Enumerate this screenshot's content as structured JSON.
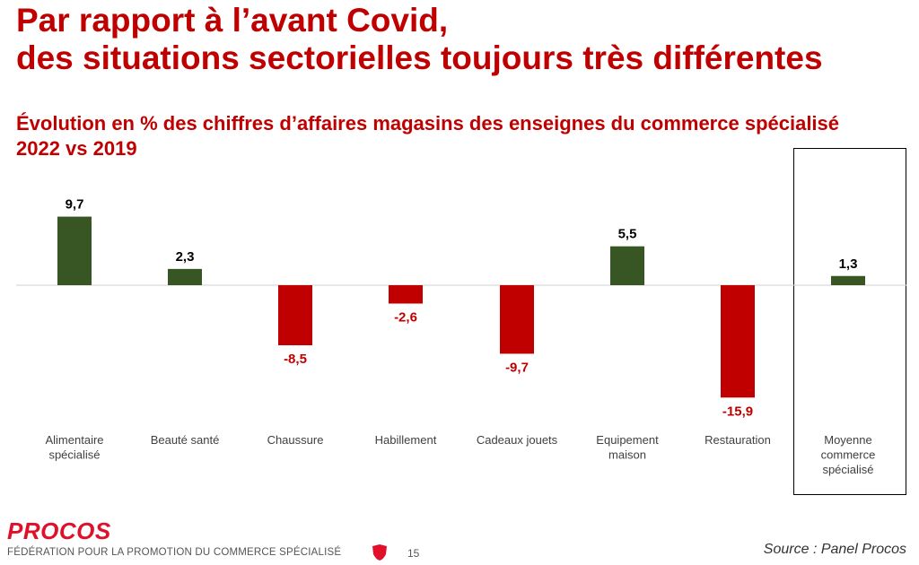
{
  "header": {
    "title_line1": "Par rapport à l’avant Covid,",
    "title_line2": "des situations sectorielles toujours très différentes"
  },
  "chart_data": {
    "type": "bar",
    "title": "Évolution en % des chiffres d’affaires magasins des enseignes du commerce spécialisé 2022 vs 2019",
    "categories": [
      [
        "Alimentaire",
        "spécialisé"
      ],
      [
        "Beauté santé"
      ],
      [
        "Chaussure"
      ],
      [
        "Habillement"
      ],
      [
        "Cadeaux jouets"
      ],
      [
        "Equipement",
        "maison"
      ],
      [
        "Restauration"
      ],
      [
        "Moyenne",
        "commerce",
        "spécialisé"
      ]
    ],
    "values": [
      9.7,
      2.3,
      -8.5,
      -2.6,
      -9.7,
      5.5,
      -15.9,
      1.3
    ],
    "value_labels": [
      "9,7",
      "2,3",
      "-8,5",
      "-2,6",
      "-9,7",
      "5,5",
      "-15,9",
      "1,3"
    ],
    "highlighted_category": "Moyenne commerce spécialisé",
    "ylim": [
      -17,
      11
    ],
    "colors": {
      "positive": "#375623",
      "negative": "#c00000",
      "positive_label": "#000000",
      "negative_label": "#c00000"
    }
  },
  "footer": {
    "logo": "PROCOS",
    "org": "FÉDÉRATION POUR LA PROMOTION DU COMMERCE SPÉCIALISÉ",
    "page": "15",
    "source": "Source : Panel Procos"
  }
}
